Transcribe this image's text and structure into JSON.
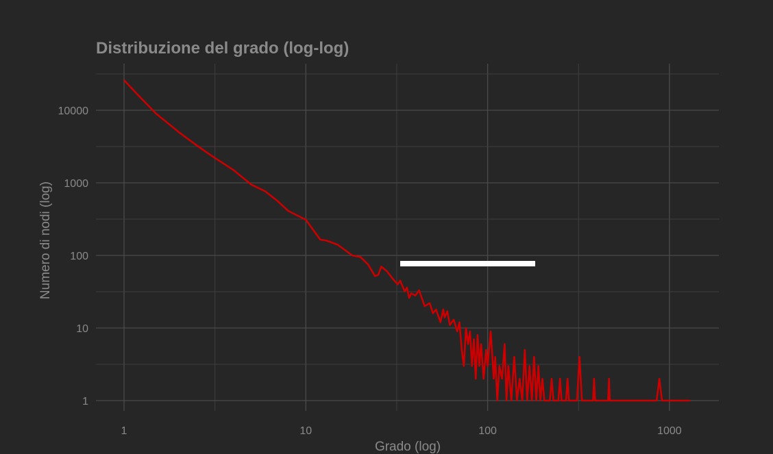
{
  "chart_data": {
    "type": "line",
    "title": "Distribuzione del grado (log-log)",
    "xlabel": "Grado (log)",
    "ylabel": "Numero di nodi (log)",
    "x_scale": "log",
    "y_scale": "log",
    "xlim": [
      0.78,
      2000
    ],
    "ylim": [
      0.9,
      35000
    ],
    "grid": true,
    "x_ticks": [
      {
        "value": 1,
        "label": "1"
      },
      {
        "value": 10,
        "label": "10"
      },
      {
        "value": 100,
        "label": "100"
      },
      {
        "value": 1000,
        "label": "1000"
      }
    ],
    "y_ticks": [
      {
        "value": 1,
        "label": "1"
      },
      {
        "value": 10,
        "label": "10"
      },
      {
        "value": 100,
        "label": "100"
      },
      {
        "value": 1000,
        "label": "1000"
      },
      {
        "value": 10000,
        "label": "10000"
      }
    ],
    "series": [
      {
        "color": "#cc0000",
        "points": [
          [
            1,
            26000
          ],
          [
            1.2,
            16000
          ],
          [
            1.5,
            9000
          ],
          [
            2,
            5000
          ],
          [
            2.5,
            3300
          ],
          [
            3,
            2400
          ],
          [
            4,
            1500
          ],
          [
            5,
            950
          ],
          [
            6,
            760
          ],
          [
            7,
            560
          ],
          [
            8,
            410
          ],
          [
            10,
            310
          ],
          [
            12,
            165
          ],
          [
            13,
            160
          ],
          [
            15,
            140
          ],
          [
            18,
            100
          ],
          [
            20,
            95
          ],
          [
            22,
            75
          ],
          [
            24,
            52
          ],
          [
            25,
            54
          ],
          [
            26,
            70
          ],
          [
            28,
            60
          ],
          [
            30,
            48
          ],
          [
            32,
            40
          ],
          [
            33,
            45
          ],
          [
            35,
            32
          ],
          [
            36,
            36
          ],
          [
            37,
            26
          ],
          [
            38,
            30
          ],
          [
            40,
            28
          ],
          [
            42,
            33
          ],
          [
            45,
            20
          ],
          [
            48,
            22
          ],
          [
            50,
            16
          ],
          [
            52,
            18
          ],
          [
            55,
            12
          ],
          [
            57,
            18
          ],
          [
            58,
            14
          ],
          [
            60,
            17
          ],
          [
            62,
            11
          ],
          [
            65,
            13
          ],
          [
            68,
            9
          ],
          [
            70,
            12
          ],
          [
            72,
            5
          ],
          [
            74,
            3
          ],
          [
            76,
            10
          ],
          [
            78,
            6
          ],
          [
            80,
            9
          ],
          [
            82,
            3
          ],
          [
            84,
            7
          ],
          [
            86,
            2
          ],
          [
            88,
            8
          ],
          [
            90,
            3
          ],
          [
            92,
            6
          ],
          [
            95,
            2
          ],
          [
            98,
            5
          ],
          [
            100,
            3
          ],
          [
            104,
            9
          ],
          [
            108,
            2
          ],
          [
            110,
            4
          ],
          [
            113,
            1
          ],
          [
            116,
            3
          ],
          [
            120,
            2
          ],
          [
            124,
            6
          ],
          [
            127,
            1
          ],
          [
            130,
            3
          ],
          [
            135,
            1
          ],
          [
            140,
            4
          ],
          [
            145,
            1
          ],
          [
            150,
            2
          ],
          [
            155,
            1
          ],
          [
            160,
            5
          ],
          [
            165,
            1
          ],
          [
            170,
            3
          ],
          [
            175,
            1
          ],
          [
            180,
            4
          ],
          [
            185,
            1
          ],
          [
            190,
            3
          ],
          [
            195,
            1
          ],
          [
            200,
            2
          ],
          [
            205,
            1
          ],
          [
            220,
            1
          ],
          [
            225,
            2
          ],
          [
            230,
            1
          ],
          [
            245,
            1
          ],
          [
            250,
            2
          ],
          [
            255,
            1
          ],
          [
            270,
            1
          ],
          [
            275,
            2
          ],
          [
            280,
            1
          ],
          [
            300,
            1
          ],
          [
            310,
            1
          ],
          [
            320,
            4
          ],
          [
            330,
            1
          ],
          [
            380,
            1
          ],
          [
            385,
            2
          ],
          [
            390,
            1
          ],
          [
            460,
            1
          ],
          [
            465,
            2
          ],
          [
            470,
            1
          ],
          [
            800,
            1
          ],
          [
            850,
            1
          ],
          [
            880,
            2
          ],
          [
            910,
            1
          ],
          [
            1300,
            1
          ]
        ]
      }
    ]
  }
}
